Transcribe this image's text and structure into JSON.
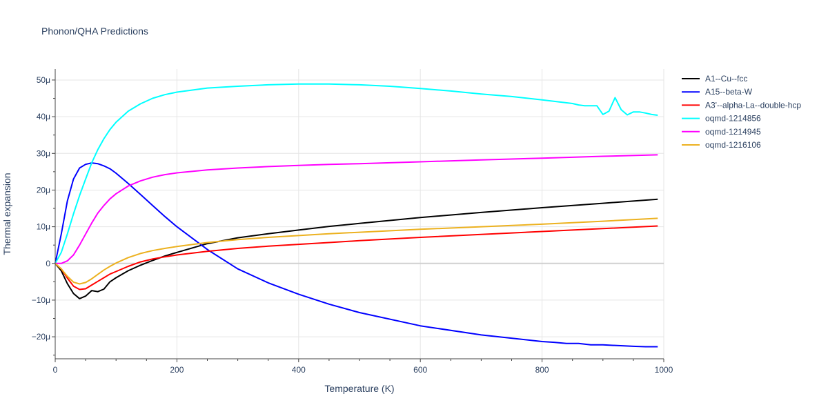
{
  "chart_data": {
    "type": "line",
    "title": "Phonon/QHA Predictions",
    "xlabel": "Temperature (K)",
    "ylabel": "Thermal expansion",
    "xlim": [
      0,
      1000
    ],
    "ylim": [
      -26,
      53
    ],
    "x_ticks": [
      0,
      200,
      400,
      600,
      800,
      1000
    ],
    "x_tick_labels": [
      "0",
      "200",
      "400",
      "600",
      "800",
      "1000"
    ],
    "y_ticks": [
      -20,
      -10,
      0,
      10,
      20,
      30,
      40,
      50
    ],
    "y_tick_labels": [
      "−20μ",
      "−10μ",
      "0",
      "10μ",
      "20μ",
      "30μ",
      "40μ",
      "50μ"
    ],
    "grid": true,
    "legend_position": "top-right outside",
    "y_unit_note": "values in units of 1e-6 (μ)",
    "series": [
      {
        "name": "A1--Cu--fcc",
        "color": "#000000",
        "x": [
          0,
          10,
          20,
          30,
          40,
          50,
          60,
          70,
          80,
          90,
          100,
          120,
          140,
          160,
          180,
          200,
          250,
          300,
          350,
          400,
          450,
          500,
          600,
          700,
          800,
          900,
          990
        ],
        "y": [
          0,
          -2,
          -5.5,
          -8.2,
          -9.6,
          -8.9,
          -7.4,
          -7.7,
          -7.0,
          -5.0,
          -3.9,
          -2.0,
          -0.5,
          0.8,
          2.0,
          3.0,
          5.4,
          7.0,
          8.1,
          9.1,
          10.1,
          10.9,
          12.5,
          13.9,
          15.2,
          16.4,
          17.5
        ]
      },
      {
        "name": "A15--beta-W",
        "color": "#0000ff",
        "x": [
          0,
          10,
          20,
          30,
          40,
          50,
          60,
          70,
          80,
          90,
          100,
          120,
          140,
          160,
          180,
          200,
          250,
          300,
          350,
          400,
          450,
          500,
          600,
          700,
          800,
          820,
          840,
          860,
          880,
          900,
          950,
          970,
          990
        ],
        "y": [
          0,
          8,
          17,
          23,
          26,
          27,
          27.4,
          27.2,
          26.6,
          25.8,
          24.6,
          21.8,
          18.8,
          15.8,
          12.8,
          10.0,
          3.8,
          -1.5,
          -5.3,
          -8.4,
          -11.1,
          -13.4,
          -17.0,
          -19.5,
          -21.3,
          -21.5,
          -21.8,
          -21.8,
          -22.2,
          -22.2,
          -22.6,
          -22.7,
          -22.7
        ]
      },
      {
        "name": "A3'--alpha-La--double-hcp",
        "color": "#ff0000",
        "x": [
          0,
          10,
          20,
          30,
          40,
          50,
          60,
          70,
          80,
          90,
          100,
          120,
          140,
          160,
          180,
          200,
          250,
          300,
          350,
          400,
          450,
          500,
          600,
          700,
          800,
          900,
          990
        ],
        "y": [
          0,
          -1.5,
          -4.0,
          -6.2,
          -7.1,
          -6.9,
          -5.9,
          -4.9,
          -3.9,
          -2.9,
          -2.2,
          -0.8,
          0.4,
          1.2,
          1.8,
          2.3,
          3.3,
          4.1,
          4.7,
          5.2,
          5.7,
          6.2,
          7.1,
          7.9,
          8.7,
          9.5,
          10.2
        ]
      },
      {
        "name": "oqmd-1214856",
        "color": "#00ffff",
        "x": [
          0,
          10,
          20,
          30,
          40,
          50,
          60,
          70,
          80,
          90,
          100,
          120,
          140,
          160,
          180,
          200,
          250,
          300,
          350,
          400,
          450,
          500,
          550,
          600,
          650,
          700,
          750,
          800,
          850,
          860,
          870,
          890,
          900,
          910,
          920,
          930,
          940,
          950,
          960,
          970,
          980,
          990
        ],
        "y": [
          0,
          3,
          8,
          13.5,
          18.5,
          23,
          27.4,
          31,
          34,
          36.5,
          38.5,
          41.5,
          43.5,
          45,
          46,
          46.7,
          47.8,
          48.3,
          48.7,
          48.9,
          48.9,
          48.7,
          48.3,
          47.7,
          47.0,
          46.2,
          45.5,
          44.6,
          43.6,
          43.2,
          43.0,
          43.0,
          40.6,
          41.5,
          45.2,
          41.9,
          40.5,
          41.3,
          41.3,
          41.0,
          40.6,
          40.4
        ]
      },
      {
        "name": "oqmd-1214945",
        "color": "#ff00ff",
        "x": [
          0,
          10,
          20,
          30,
          40,
          50,
          60,
          70,
          80,
          90,
          100,
          120,
          140,
          160,
          180,
          200,
          250,
          300,
          350,
          400,
          450,
          500,
          600,
          700,
          800,
          900,
          990
        ],
        "y": [
          0,
          0,
          0.7,
          2.3,
          5.0,
          8.0,
          11.0,
          13.7,
          15.8,
          17.6,
          19.0,
          21.1,
          22.5,
          23.5,
          24.2,
          24.7,
          25.5,
          26.0,
          26.4,
          26.7,
          27.0,
          27.2,
          27.7,
          28.2,
          28.7,
          29.2,
          29.6
        ]
      },
      {
        "name": "oqmd-1216106",
        "color": "#ecb11f",
        "x": [
          0,
          10,
          20,
          30,
          40,
          50,
          60,
          70,
          80,
          90,
          100,
          120,
          140,
          160,
          180,
          200,
          250,
          300,
          350,
          400,
          450,
          500,
          600,
          700,
          800,
          900,
          990
        ],
        "y": [
          0,
          -1.5,
          -3.5,
          -5.1,
          -5.6,
          -5.2,
          -4.2,
          -3.0,
          -1.8,
          -0.8,
          0.1,
          1.6,
          2.7,
          3.5,
          4.1,
          4.6,
          5.7,
          6.5,
          7.1,
          7.6,
          8.1,
          8.5,
          9.3,
          10.0,
          10.7,
          11.5,
          12.3
        ]
      }
    ]
  }
}
